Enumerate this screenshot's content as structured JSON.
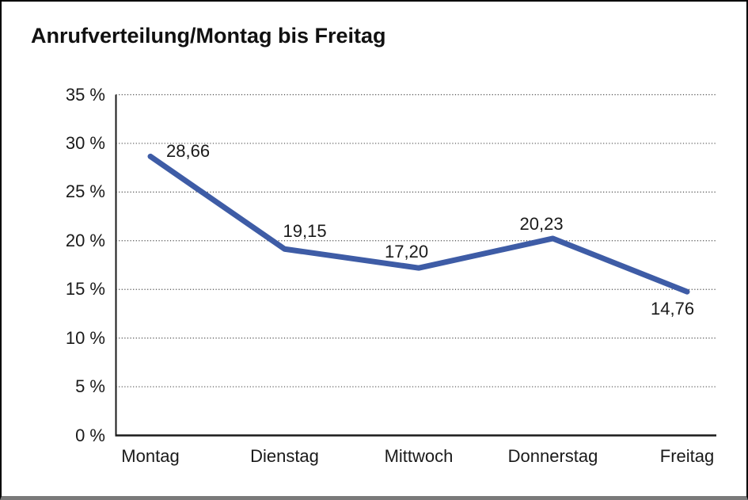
{
  "title": "Anrufverteilung/Montag bis Freitag",
  "colors": {
    "line": "#3E5CA6",
    "axis": "#1a1a1a",
    "grid": "#4d4d4d",
    "text": "#1a1a1a",
    "frame_border": "#000000",
    "frame_bottom_bar": "#7a7a7a",
    "background": "#ffffff"
  },
  "chart_data": {
    "type": "line",
    "title": "Anrufverteilung/Montag bis Freitag",
    "categories": [
      "Montag",
      "Dienstag",
      "Mittwoch",
      "Donnerstag",
      "Freitag"
    ],
    "values": [
      28.66,
      19.15,
      17.2,
      20.23,
      14.76
    ],
    "value_labels": [
      "28,66",
      "19,15",
      "17,20",
      "20,23",
      "14,76"
    ],
    "xlabel": "",
    "ylabel": "",
    "ylim": [
      0,
      35
    ],
    "ytick_step": 5,
    "ytick_labels": [
      "0 %",
      "5 %",
      "10 %",
      "15 %",
      "20 %",
      "25 %",
      "30 %",
      "35 %"
    ],
    "grid": "horizontal-dotted",
    "legend_position": "none"
  }
}
